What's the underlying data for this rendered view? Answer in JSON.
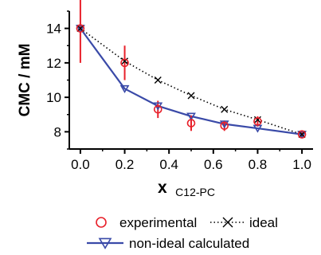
{
  "chart_data": {
    "type": "line",
    "xlabel_main": "x",
    "xlabel_sub": "C12-PC",
    "ylabel": "CMC / mM",
    "xlim": [
      -0.05,
      1.05
    ],
    "ylim": [
      7.0,
      15.0
    ],
    "xticks": [
      0.0,
      0.2,
      0.4,
      0.6,
      0.8,
      1.0
    ],
    "xtick_labels": [
      "0.0",
      "0.2",
      "0.4",
      "0.6",
      "0.8",
      "1.0"
    ],
    "yticks": [
      8,
      10,
      12,
      14
    ],
    "ytick_labels": [
      "8",
      "10",
      "12",
      "14"
    ],
    "grid": false,
    "legend_position": "bottom",
    "series": [
      {
        "name": "experimental",
        "marker": "circle",
        "color": "#e8202a",
        "x": [
          0.0,
          0.2,
          0.35,
          0.5,
          0.65,
          0.8,
          1.0
        ],
        "y": [
          14.0,
          12.0,
          9.3,
          8.5,
          8.35,
          8.6,
          7.85
        ],
        "yerr": [
          2.0,
          1.0,
          0.5,
          0.45,
          0.3,
          0.3,
          0.15
        ]
      },
      {
        "name": "ideal",
        "marker": "x",
        "line": "dotted",
        "color": "#000000",
        "x": [
          0.0,
          0.2,
          0.35,
          0.5,
          0.65,
          0.8,
          1.0
        ],
        "y": [
          14.0,
          12.1,
          11.0,
          10.1,
          9.3,
          8.7,
          7.85
        ]
      },
      {
        "name": "non-ideal calculated",
        "marker": "triangle-down",
        "line": "solid",
        "color": "#3a4aa8",
        "x": [
          0.0,
          0.2,
          0.35,
          0.5,
          0.65,
          0.8,
          1.0
        ],
        "y": [
          14.0,
          10.5,
          9.5,
          8.9,
          8.45,
          8.2,
          7.85
        ]
      }
    ]
  }
}
